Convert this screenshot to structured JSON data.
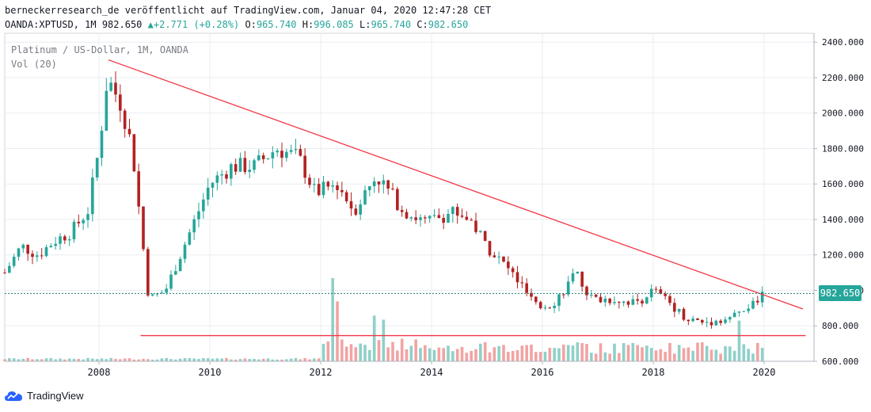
{
  "header": {
    "line1": "berneckerresearch_de veröffentlicht auf TradingView.com, Januar 04, 2020 12:47:28 CET",
    "symbol": "OANDA:XPTUSD, 1M",
    "last": "982.650",
    "change": "+2.771 (+0.28%)",
    "o_label": "O:",
    "o_value": "965.740",
    "h_label": "H:",
    "h_value": "996.085",
    "l_label": "L:",
    "l_value": "965.740",
    "c_label": "C:",
    "c_value": "982.650"
  },
  "overlay": {
    "title": "Platinum / US-Dollar, 1M, OANDA",
    "volume": "Vol (20)"
  },
  "footer": {
    "brand": "TradingView"
  },
  "colors": {
    "up": "#26a69a",
    "down": "#b22222",
    "vol_up": "#8fd0c8",
    "vol_down": "#f2a3a3",
    "trend": "#f23645",
    "grid": "#e8edf2"
  },
  "chart_data": {
    "type": "candlestick",
    "title": "Platinum / US-Dollar, 1M, OANDA",
    "ylim": [
      600,
      2450
    ],
    "yticks": [
      "2400.000",
      "2200.000",
      "2000.000",
      "1800.000",
      "1600.000",
      "1400.000",
      "1200.000",
      "1000.000",
      "800.000",
      "600.000"
    ],
    "ytick_values": [
      2400,
      2200,
      2000,
      1800,
      1600,
      1400,
      1200,
      1000,
      800,
      600
    ],
    "xlim": [
      2006.3,
      2020.9
    ],
    "xticks": [
      "2008",
      "2010",
      "2012",
      "2014",
      "2016",
      "2018",
      "2020"
    ],
    "xtick_values": [
      2008,
      2010,
      2012,
      2014,
      2016,
      2018,
      2020
    ],
    "last_price": "982.650",
    "last_price_value": 982.65,
    "trendlines": [
      {
        "name": "resistance",
        "from": [
          2008.17,
          2300
        ],
        "to": [
          2020.7,
          895
        ]
      },
      {
        "name": "support",
        "from": [
          2008.75,
          745
        ],
        "to": [
          2020.75,
          745
        ]
      }
    ],
    "anchors": [
      [
        2006.3,
        1100
      ],
      [
        2006.6,
        1250
      ],
      [
        2006.9,
        1200
      ],
      [
        2007.2,
        1280
      ],
      [
        2007.5,
        1330
      ],
      [
        2007.8,
        1450
      ],
      [
        2008.0,
        1800
      ],
      [
        2008.15,
        2200
      ],
      [
        2008.4,
        2050
      ],
      [
        2008.6,
        1800
      ],
      [
        2008.9,
        950
      ],
      [
        2009.2,
        1000
      ],
      [
        2009.6,
        1300
      ],
      [
        2010.0,
        1600
      ],
      [
        2010.4,
        1700
      ],
      [
        2010.8,
        1700
      ],
      [
        2011.2,
        1800
      ],
      [
        2011.6,
        1750
      ],
      [
        2011.9,
        1550
      ],
      [
        2012.3,
        1600
      ],
      [
        2012.6,
        1450
      ],
      [
        2013.0,
        1650
      ],
      [
        2013.5,
        1450
      ],
      [
        2013.9,
        1380
      ],
      [
        2014.4,
        1450
      ],
      [
        2014.7,
        1400
      ],
      [
        2015.0,
        1250
      ],
      [
        2015.5,
        1080
      ],
      [
        2015.9,
        900
      ],
      [
        2016.2,
        930
      ],
      [
        2016.6,
        1090
      ],
      [
        2016.9,
        950
      ],
      [
        2017.3,
        950
      ],
      [
        2017.7,
        930
      ],
      [
        2018.0,
        1000
      ],
      [
        2018.3,
        930
      ],
      [
        2018.6,
        840
      ],
      [
        2018.9,
        820
      ],
      [
        2019.2,
        830
      ],
      [
        2019.5,
        860
      ],
      [
        2019.8,
        920
      ],
      [
        2020.0,
        982
      ]
    ],
    "volume_note": "Vol (20) histogram, relative heights",
    "volume_spikes": [
      [
        2012.2,
        1.0
      ],
      [
        2012.33,
        0.72
      ],
      [
        2012.95,
        0.55
      ],
      [
        2013.1,
        0.5
      ],
      [
        2019.55,
        0.49
      ]
    ]
  }
}
